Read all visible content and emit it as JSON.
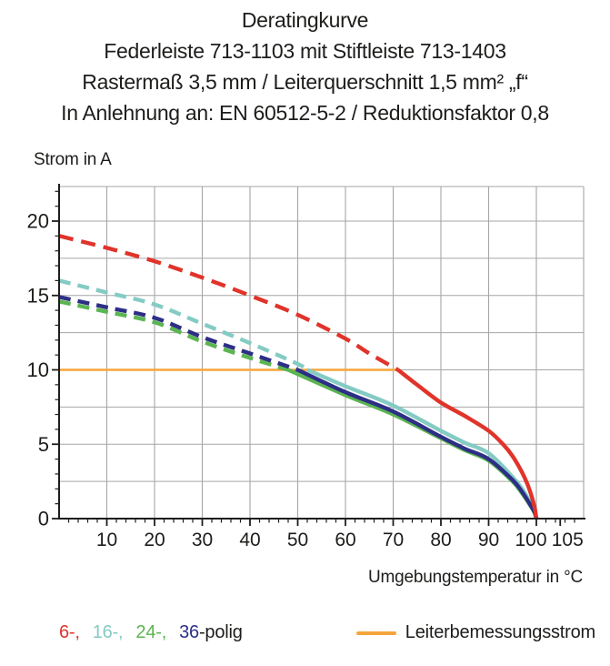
{
  "chart_data": {
    "type": "line",
    "title": "Deratingkurve",
    "title_lines": [
      "Deratingkurve",
      "Federleiste 713-1103 mit Stiftleiste 713-1403",
      "Rastermaß 3,5 mm / Leiterquerschnitt 1,5 mm² „f“",
      "In Anlehnung an: EN 60512-5-2 / Reduktionsfaktor 0,8"
    ],
    "ylabel": "Strom in A",
    "xlabel": "Umgebungstemperatur in °C",
    "xlim": [
      0,
      110
    ],
    "ylim": [
      0,
      22.3
    ],
    "x_tick_labels": [
      10,
      20,
      30,
      40,
      50,
      60,
      70,
      80,
      90,
      100,
      105
    ],
    "y_tick_labels": [
      0,
      5,
      10,
      15,
      20
    ],
    "x_grid_step": 10,
    "y_grid_step": 2.5,
    "x_minor_step": 2,
    "y_minor_step": 1,
    "grid": true,
    "legend_position": "bottom",
    "series": [
      {
        "name": "6-polig",
        "color": "#e0342b",
        "z": 4,
        "width": 4.4,
        "dash": "16 9",
        "solid_from_t": 71,
        "points": [
          [
            0,
            19.0
          ],
          [
            10,
            18.2
          ],
          [
            20,
            17.3
          ],
          [
            30,
            16.2
          ],
          [
            40,
            15.0
          ],
          [
            50,
            13.7
          ],
          [
            60,
            12.1
          ],
          [
            65,
            11.1
          ],
          [
            71,
            10.0
          ],
          [
            75,
            9.0
          ],
          [
            80,
            7.8
          ],
          [
            85,
            6.9
          ],
          [
            90,
            5.9
          ],
          [
            93,
            5.0
          ],
          [
            95,
            4.2
          ],
          [
            97,
            3.1
          ],
          [
            98.5,
            2.0
          ],
          [
            99.6,
            0.8
          ],
          [
            100,
            0
          ]
        ]
      },
      {
        "name": "16-polig",
        "color": "#84cbc4",
        "z": 2,
        "width": 4.4,
        "dash": "13 8",
        "solid_from_t": 52,
        "points": [
          [
            0,
            16.0
          ],
          [
            10,
            15.2
          ],
          [
            20,
            14.4
          ],
          [
            30,
            13.1
          ],
          [
            40,
            11.8
          ],
          [
            50,
            10.4
          ],
          [
            52,
            10.0
          ],
          [
            60,
            8.9
          ],
          [
            70,
            7.6
          ],
          [
            80,
            5.9
          ],
          [
            85,
            5.1
          ],
          [
            90,
            4.4
          ],
          [
            95,
            2.8
          ],
          [
            97,
            2.0
          ],
          [
            98.5,
            1.2
          ],
          [
            99.6,
            0.5
          ],
          [
            100,
            0
          ]
        ]
      },
      {
        "name": "24-polig",
        "color": "#5bb551",
        "z": 1,
        "width": 4.4,
        "dash": "13 8",
        "solid_from_t": 48,
        "points": [
          [
            0,
            14.6
          ],
          [
            10,
            13.9
          ],
          [
            20,
            13.2
          ],
          [
            30,
            11.9
          ],
          [
            40,
            10.8
          ],
          [
            48,
            10.0
          ],
          [
            60,
            8.3
          ],
          [
            70,
            7.0
          ],
          [
            80,
            5.4
          ],
          [
            85,
            4.6
          ],
          [
            90,
            3.9
          ],
          [
            95,
            2.5
          ],
          [
            97,
            1.7
          ],
          [
            98.5,
            1.0
          ],
          [
            99.6,
            0.4
          ],
          [
            100,
            0
          ]
        ]
      },
      {
        "name": "36-polig",
        "color": "#2d2f86",
        "z": 3,
        "width": 4.4,
        "dash": "13 8",
        "solid_from_t": 50,
        "points": [
          [
            0,
            14.9
          ],
          [
            10,
            14.2
          ],
          [
            20,
            13.5
          ],
          [
            30,
            12.2
          ],
          [
            40,
            11.1
          ],
          [
            50,
            10.0
          ],
          [
            60,
            8.5
          ],
          [
            70,
            7.2
          ],
          [
            80,
            5.5
          ],
          [
            85,
            4.7
          ],
          [
            90,
            4.0
          ],
          [
            95,
            2.6
          ],
          [
            97,
            1.8
          ],
          [
            98.5,
            1.05
          ],
          [
            99.6,
            0.45
          ],
          [
            100,
            0
          ]
        ]
      },
      {
        "name": "Leiterbemessungsstrom",
        "color": "#f5a53c",
        "z": 0,
        "width": 2.6,
        "points": [
          [
            0,
            10
          ],
          [
            71,
            10
          ]
        ]
      }
    ]
  },
  "legend": {
    "pole_items": [
      {
        "label": "6-,",
        "color": "#e0342b"
      },
      {
        "label": "16-,",
        "color": "#84cbc4"
      },
      {
        "label": "24-,",
        "color": "#5bb551"
      },
      {
        "label": "36",
        "color": "#2d2f86"
      }
    ],
    "pole_suffix": "-polig",
    "rated": {
      "label": "Leiterbemessungsstrom",
      "color": "#f5a53c"
    }
  },
  "colors": {
    "grid": "#a6a6a6",
    "axis": "#1d1d1b",
    "text": "#1d1d1b",
    "background": "#ffffff"
  }
}
